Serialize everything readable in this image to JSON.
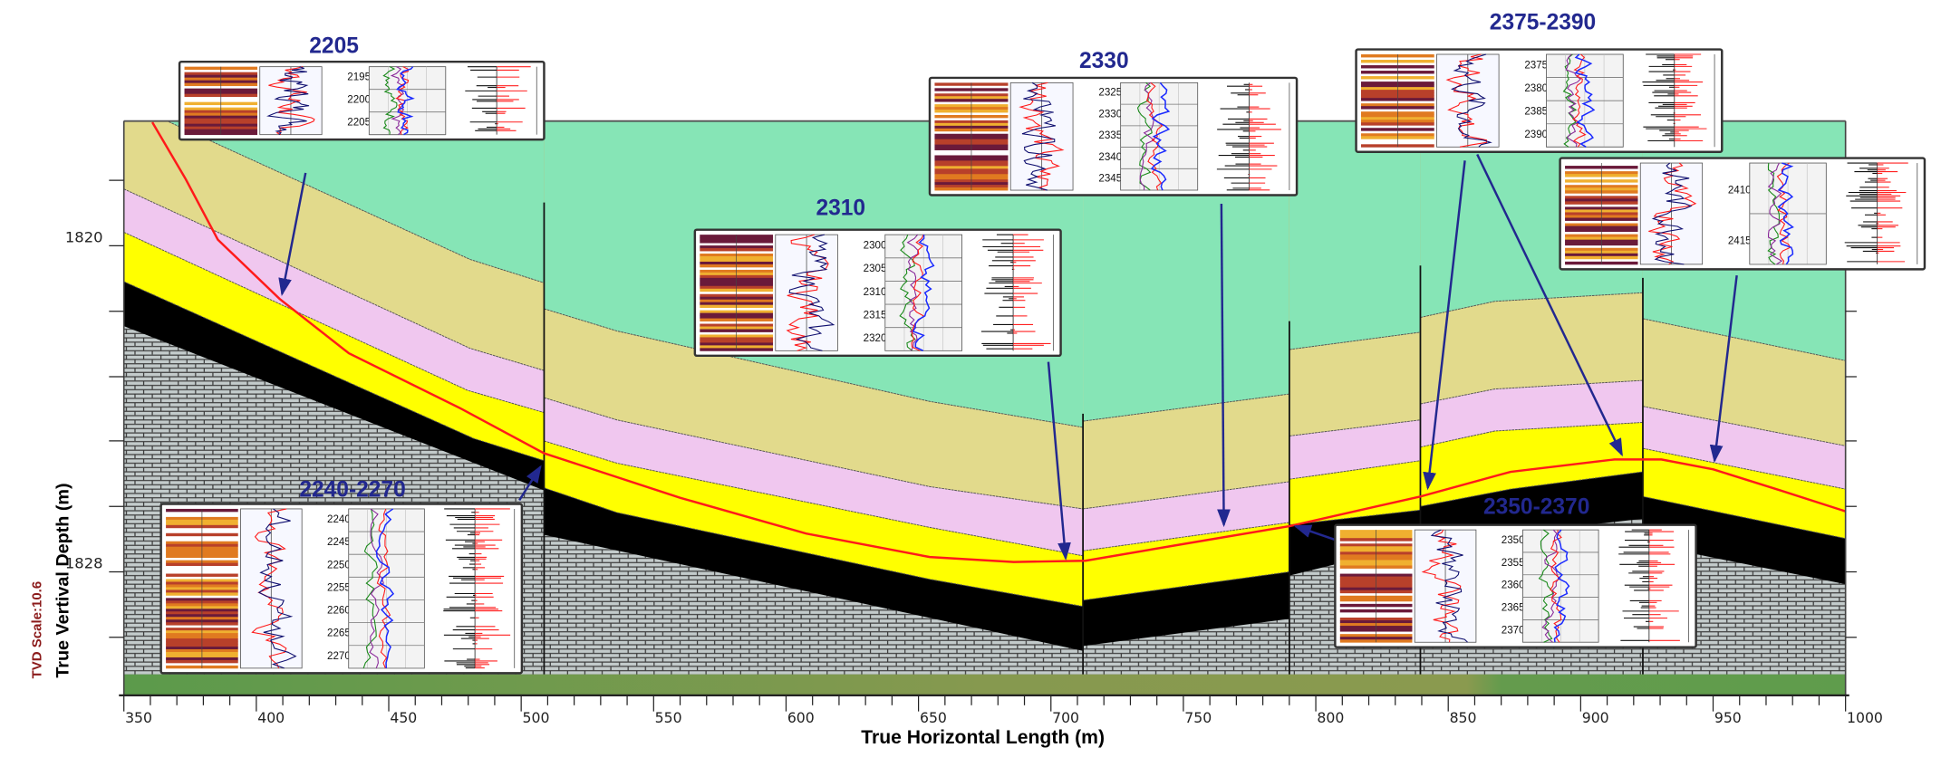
{
  "axes": {
    "x_title": "True Horizontal Length (m)",
    "y_title": "True Vertival Depth (m)",
    "tvd_scale": "TVD Scale:10.6",
    "x_tick_labels": [
      "350",
      "400",
      "450",
      "500",
      "550",
      "600",
      "650",
      "700",
      "750",
      "800",
      "850",
      "900",
      "950",
      "1000"
    ],
    "y_tick_labels": [
      "1820",
      "1828"
    ]
  },
  "layer_colors": {
    "green": "#86e5b6",
    "khaki": "#e2da8c",
    "pink": "#f0c7ef",
    "yellow": "#ffff00",
    "black": "#000000",
    "brick": "#c3cbcb",
    "well_path": "#ff1a1a",
    "annotation": "#22288f"
  },
  "insets": [
    {
      "label": "2205",
      "depths": [
        "2195",
        "2200",
        "2205"
      ]
    },
    {
      "label": "2330",
      "depths": [
        "2325",
        "2330",
        "2335",
        "2340",
        "2345"
      ]
    },
    {
      "label": "2310",
      "depths": [
        "2300",
        "2305",
        "2310",
        "2315",
        "2320"
      ]
    },
    {
      "label": "2375-2390",
      "depths": [
        "2375",
        "2380",
        "2385",
        "2390"
      ]
    },
    {
      "label": "",
      "depths": [
        "2410",
        "2415"
      ]
    },
    {
      "label": "2240-2270",
      "depths": [
        "2240",
        "2245",
        "2250",
        "2255",
        "2260",
        "2265",
        "2270"
      ]
    },
    {
      "label": "2350-2370",
      "depths": [
        "2350",
        "2355",
        "2360",
        "2365",
        "2370"
      ]
    }
  ]
}
